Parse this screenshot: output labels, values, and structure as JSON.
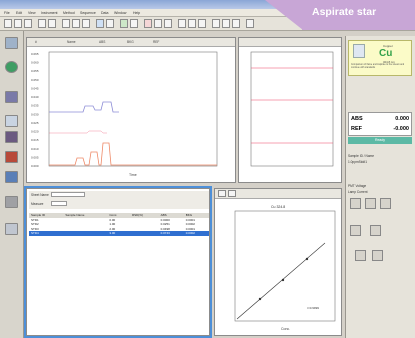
{
  "callout": {
    "text": "Aspirate star"
  },
  "title": "",
  "menu": [
    "File",
    "Edit",
    "View",
    "Instrument",
    "Method",
    "Sequence",
    "Data",
    "Window",
    "Help"
  ],
  "left_toolbar": [
    "Method",
    "Sample",
    "Connect",
    "Flame",
    "Lamp",
    "Results",
    "Report",
    "Spectra"
  ],
  "top_left_panel": {
    "header_cols": [
      "#",
      "Name",
      "ABS",
      "BKG",
      "REF"
    ],
    "x_label": "Time",
    "y_ticks": [
      "0.065",
      "0.060",
      "0.055",
      "0.050",
      "0.045",
      "0.040",
      "0.035",
      "0.030",
      "0.025",
      "0.020",
      "0.015",
      "0.010",
      "0.005",
      "0.000"
    ]
  },
  "element": {
    "symbol": "Cu",
    "name": "Copper",
    "wavelength": "324.8 nm",
    "description": "Comparison of flame and Aspirate to the stream and continue with standards"
  },
  "readout": {
    "abs_label": "ABS",
    "abs_value": "0.000",
    "ref_label": "REF",
    "ref_value": "-0.000"
  },
  "status": "Ready",
  "right_texts": [
    "Sample ID / Name",
    "1.0ppmStd#1",
    "PMT Voltage",
    "Lamp Current"
  ],
  "bottom_left": {
    "row_labels": [
      "Sheet Name",
      "Measure"
    ],
    "col_headers": [
      "Sample ID",
      "Sample Name",
      "Conc.",
      "RSD(%)",
      "ABS",
      "BKG"
    ],
    "rows": [
      [
        "STD1",
        "",
        "0.00",
        "",
        "0.0000",
        "0.0001"
      ],
      [
        "STD2",
        "",
        "1.00",
        "",
        "0.0251",
        "0.0002"
      ],
      [
        "STD3",
        "",
        "2.00",
        "",
        "0.0498",
        "0.0001"
      ],
      [
        "STD4",
        "",
        "3.00",
        "",
        "0.0743",
        "0.0002"
      ]
    ]
  },
  "calibration": {
    "title": "Cu 324.8",
    "x_label": "Conc.",
    "r_text": "r=0.9999"
  }
}
